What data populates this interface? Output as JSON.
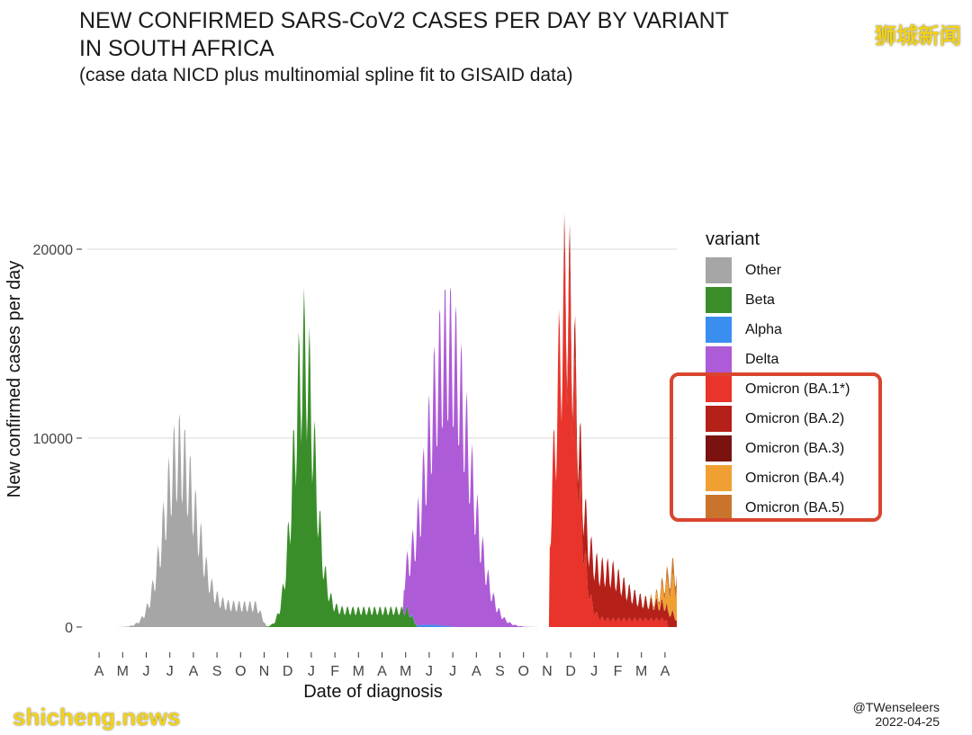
{
  "header": {
    "title_line1": "NEW CONFIRMED SARS-CoV2 CASES PER DAY BY VARIANT",
    "title_line2": "IN SOUTH AFRICA",
    "subtitle": "(case data NICD plus multinomial spline fit to GISAID data)"
  },
  "watermark": {
    "cn": "狮城新闻",
    "en": "shicheng.news"
  },
  "credit": {
    "handle": "@TWenseleers",
    "date": "2022-04-25"
  },
  "chart_data": {
    "type": "area",
    "title": "NEW CONFIRMED SARS-CoV2 CASES PER DAY BY VARIANT IN SOUTH AFRICA",
    "subtitle": "(case data NICD plus multinomial spline fit to GISAID data)",
    "xlabel": "Date of diagnosis",
    "ylabel": "New confirmed cases per day",
    "ylim": [
      0,
      27000
    ],
    "yticks": [
      0,
      10000,
      20000
    ],
    "ytick_labels": [
      "0",
      "10000",
      "20000"
    ],
    "xticks": [
      "A",
      "M",
      "J",
      "J",
      "A",
      "S",
      "O",
      "N",
      "D",
      "J",
      "F",
      "M",
      "A",
      "M",
      "J",
      "J",
      "A",
      "S",
      "O",
      "N",
      "D",
      "J",
      "F",
      "M",
      "A"
    ],
    "xrange_months": [
      0,
      25
    ],
    "grid": "horizontal",
    "stacked": true,
    "legend_title": "variant",
    "legend_position": "right",
    "series": [
      {
        "name": "Other",
        "color": "#a6a6a6",
        "peak_month": 3.9,
        "peak": 11500,
        "spread": 0.65,
        "base": 1400,
        "base_from": 4.8,
        "base_to": 7.2,
        "start": 0,
        "end": 8.2
      },
      {
        "name": "Beta",
        "color": "#3a8e2a",
        "peak_month": 9.2,
        "peak": 18000,
        "spread": 0.45,
        "base": 1100,
        "base_from": 10.2,
        "base_to": 13.6,
        "start": 3.0,
        "end": 15.5
      },
      {
        "name": "Alpha",
        "color": "#3a8ef0",
        "peak_month": 14.5,
        "peak": 150,
        "spread": 0.6,
        "base": 0,
        "base_from": 0,
        "base_to": 0,
        "start": 13.5,
        "end": 15.5
      },
      {
        "name": "Delta",
        "color": "#ad5bd6",
        "peak_month": 15.3,
        "peak": 18500,
        "spread": 0.9,
        "base": 0,
        "base_from": 0,
        "base_to": 0,
        "start": 13.4,
        "end": 19.8
      },
      {
        "name": "Omicron (BA.1*)",
        "color": "#e8342a",
        "peak_month": 20.3,
        "peak": 21000,
        "spread": 0.45,
        "base": 500,
        "base_from": 21.3,
        "base_to": 24.5,
        "start": 19.6,
        "end": 24.6
      },
      {
        "name": "Omicron (BA.2)",
        "color": "#b52019",
        "peak_month": 21.5,
        "peak": 3200,
        "spread": 0.9,
        "base": 900,
        "base_from": 22.3,
        "base_to": 24.8,
        "start": 20.2,
        "end": 25
      },
      {
        "name": "Omicron (BA.3)",
        "color": "#7a130f",
        "peak_month": 23.5,
        "peak": 100,
        "spread": 1.0,
        "base": 0,
        "base_from": 0,
        "base_to": 0,
        "start": 22.5,
        "end": 25
      },
      {
        "name": "Omicron (BA.4)",
        "color": "#f0a033",
        "peak_month": 25,
        "peak": 2200,
        "spread": 0.45,
        "base": 0,
        "base_from": 0,
        "base_to": 0,
        "start": 23.6,
        "end": 25
      },
      {
        "name": "Omicron (BA.5)",
        "color": "#c8742d",
        "peak_month": 25,
        "peak": 900,
        "spread": 0.45,
        "base": 0,
        "base_from": 0,
        "base_to": 0,
        "start": 23.6,
        "end": 25
      }
    ],
    "highlighted_legend_entries": [
      "Omicron (BA.1*)",
      "Omicron (BA.2)",
      "Omicron (BA.3)",
      "Omicron (BA.4)",
      "Omicron (BA.5)"
    ]
  }
}
